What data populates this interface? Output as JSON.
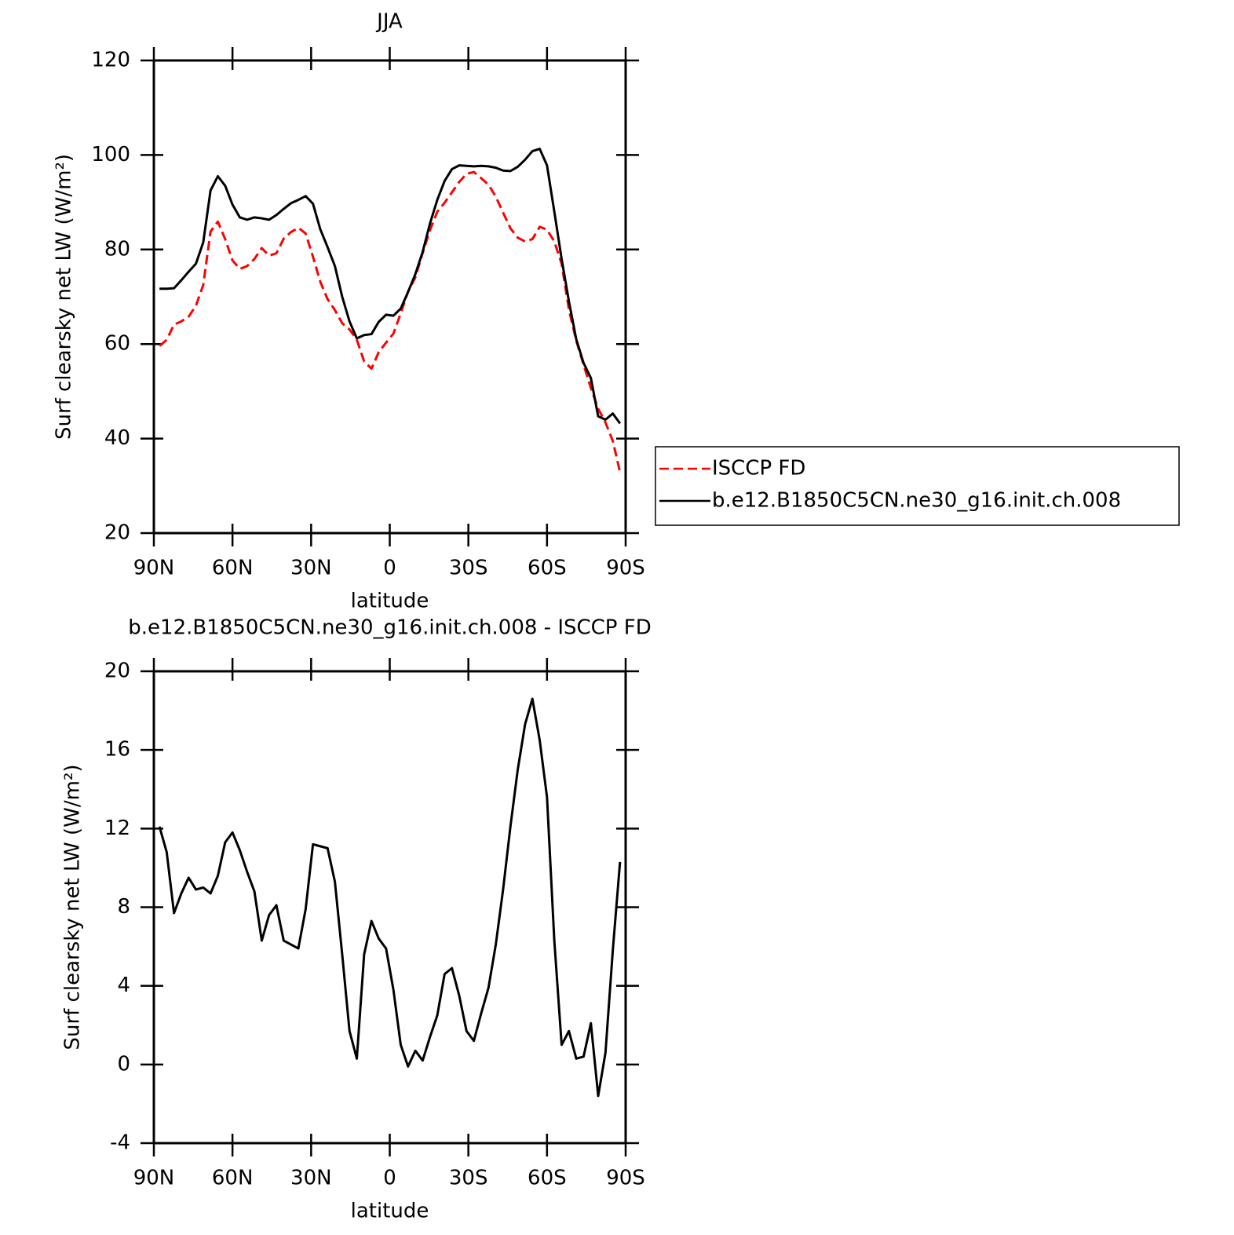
{
  "chart_data": [
    {
      "type": "line",
      "title": "JJA",
      "x_label": "latitude",
      "y_label": "Surf clearsky net LW (W/m²)",
      "x": [
        87.86,
        85.1,
        82.31,
        79.53,
        76.74,
        73.95,
        71.16,
        68.37,
        65.58,
        62.79,
        60.0,
        57.21,
        54.42,
        51.63,
        48.84,
        46.04,
        43.25,
        40.46,
        37.67,
        34.88,
        32.09,
        29.3,
        26.51,
        23.72,
        20.93,
        18.14,
        15.35,
        12.56,
        9.77,
        6.98,
        4.19,
        1.4,
        -1.4,
        -4.19,
        -6.98,
        -9.77,
        -12.56,
        -15.35,
        -18.14,
        -20.93,
        -23.72,
        -26.51,
        -29.3,
        -32.09,
        -34.88,
        -37.67,
        -40.46,
        -43.25,
        -46.04,
        -48.84,
        -51.63,
        -54.42,
        -57.21,
        -60.0,
        -62.79,
        -65.58,
        -68.37,
        -71.16,
        -73.95,
        -76.74,
        -79.53,
        -82.31,
        -85.1,
        -87.86
      ],
      "xlim": [
        90,
        -90
      ],
      "xticks": [
        {
          "value": 90,
          "label": "90N"
        },
        {
          "value": 60,
          "label": "60N"
        },
        {
          "value": 30,
          "label": "30N"
        },
        0,
        {
          "value": -30,
          "label": "30S"
        },
        {
          "value": -60,
          "label": "60S"
        },
        {
          "value": -90,
          "label": "90S"
        }
      ],
      "ylim": [
        20,
        120
      ],
      "yticks": [
        20,
        40,
        60,
        80,
        100,
        120
      ],
      "legend": "right",
      "series": [
        {
          "name": "ISCCP FD",
          "color": "#ff0000",
          "style": "dashed",
          "values": [
            59.6,
            60.9,
            64.1,
            64.8,
            65.8,
            68.1,
            72.5,
            83.8,
            85.9,
            82.2,
            77.7,
            75.9,
            76.5,
            78.0,
            80.3,
            78.7,
            79.2,
            82.3,
            83.7,
            84.6,
            83.4,
            78.5,
            73.2,
            69.5,
            67.2,
            64.4,
            63.1,
            60.9,
            56.3,
            54.8,
            58.3,
            60.3,
            62.2,
            66.5,
            71.1,
            74.1,
            79.3,
            84.1,
            88.0,
            89.9,
            92.1,
            94.3,
            96.0,
            96.4,
            95.1,
            93.7,
            91.2,
            87.8,
            84.5,
            82.5,
            81.7,
            82.2,
            84.8,
            84.2,
            81.7,
            77.0,
            67.3,
            60.7,
            55.6,
            50.7,
            46.3,
            43.4,
            39.5,
            32.9
          ]
        },
        {
          "name": "b.e12.B1850C5CN.ne30_g16.init.ch.008",
          "color": "#000000",
          "style": "solid",
          "values": [
            71.7,
            71.7,
            71.8,
            73.5,
            75.3,
            77.0,
            81.5,
            92.5,
            95.5,
            93.5,
            89.5,
            86.8,
            86.3,
            86.8,
            86.6,
            86.3,
            87.3,
            88.6,
            89.8,
            90.5,
            91.3,
            89.7,
            84.3,
            80.5,
            76.5,
            70.0,
            64.8,
            61.2,
            61.9,
            62.1,
            64.7,
            66.2,
            66.0,
            67.5,
            71.0,
            74.8,
            79.5,
            85.5,
            90.5,
            94.5,
            97.0,
            97.8,
            97.7,
            97.6,
            97.7,
            97.6,
            97.3,
            96.7,
            96.6,
            97.5,
            99.0,
            100.8,
            101.3,
            97.8,
            88.0,
            78.0,
            69.0,
            61.0,
            56.0,
            52.8,
            44.7,
            44.0,
            45.3,
            43.2
          ]
        }
      ]
    },
    {
      "type": "line",
      "title": "b.e12.B1850C5CN.ne30_g16.init.ch.008 - ISCCP FD",
      "x_label": "latitude",
      "y_label": "Surf clearsky net LW (W/m²)",
      "x": [
        87.86,
        85.1,
        82.31,
        79.53,
        76.74,
        73.95,
        71.16,
        68.37,
        65.58,
        62.79,
        60.0,
        57.21,
        54.42,
        51.63,
        48.84,
        46.04,
        43.25,
        40.46,
        37.67,
        34.88,
        32.09,
        29.3,
        26.51,
        23.72,
        20.93,
        18.14,
        15.35,
        12.56,
        9.77,
        6.98,
        4.19,
        1.4,
        -1.4,
        -4.19,
        -6.98,
        -9.77,
        -12.56,
        -15.35,
        -18.14,
        -20.93,
        -23.72,
        -26.51,
        -29.3,
        -32.09,
        -34.88,
        -37.67,
        -40.46,
        -43.25,
        -46.04,
        -48.84,
        -51.63,
        -54.42,
        -57.21,
        -60.0,
        -62.79,
        -65.58,
        -68.37,
        -71.16,
        -73.95,
        -76.74,
        -79.53,
        -82.31,
        -85.1,
        -87.86
      ],
      "xlim": [
        90,
        -90
      ],
      "xticks": [
        {
          "value": 90,
          "label": "90N"
        },
        {
          "value": 60,
          "label": "60N"
        },
        {
          "value": 30,
          "label": "30N"
        },
        0,
        {
          "value": -30,
          "label": "30S"
        },
        {
          "value": -60,
          "label": "60S"
        },
        {
          "value": -90,
          "label": "90S"
        }
      ],
      "ylim": [
        -4,
        20
      ],
      "yticks": [
        -4,
        0,
        4,
        8,
        12,
        16,
        20
      ],
      "series": [
        {
          "color": "#000000",
          "style": "solid",
          "values": [
            12.1,
            10.8,
            7.7,
            8.7,
            9.5,
            8.9,
            9.0,
            8.7,
            9.6,
            11.3,
            11.8,
            10.9,
            9.8,
            8.8,
            6.3,
            7.6,
            8.1,
            6.3,
            6.1,
            5.9,
            7.9,
            11.2,
            11.1,
            11.0,
            9.3,
            5.6,
            1.7,
            0.3,
            5.6,
            7.3,
            6.4,
            5.9,
            3.8,
            1.0,
            -0.1,
            0.7,
            0.2,
            1.4,
            2.5,
            4.6,
            4.9,
            3.5,
            1.7,
            1.2,
            2.6,
            3.9,
            6.1,
            8.9,
            12.1,
            15.0,
            17.3,
            18.6,
            16.5,
            13.6,
            6.3,
            1.0,
            1.7,
            0.3,
            0.4,
            2.1,
            -1.6,
            0.6,
            5.8,
            10.3
          ]
        }
      ]
    }
  ]
}
